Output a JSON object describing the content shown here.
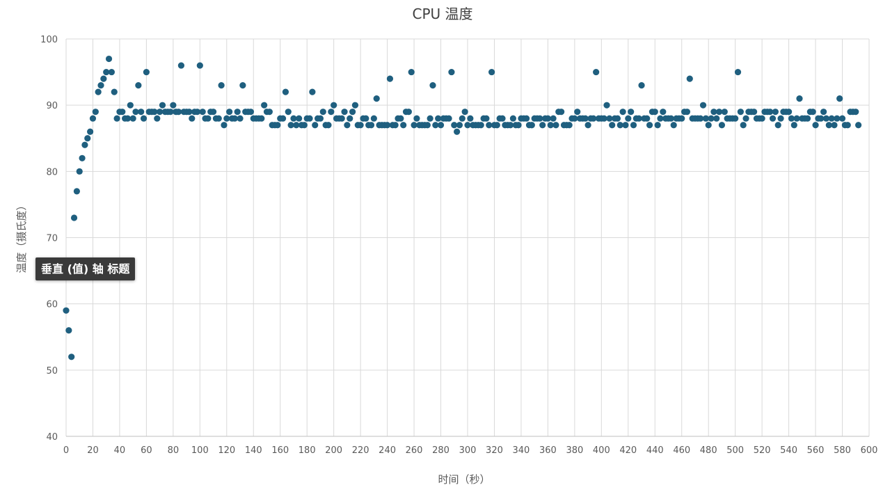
{
  "chart_data": {
    "type": "scatter",
    "title": "CPU 温度",
    "xlabel": "时间（秒）",
    "ylabel": "温度（摄氏度）",
    "xlim": [
      0,
      600
    ],
    "ylim": [
      40,
      100
    ],
    "xticks": [
      0,
      20,
      40,
      60,
      80,
      100,
      120,
      140,
      160,
      180,
      200,
      220,
      240,
      260,
      280,
      300,
      320,
      340,
      360,
      380,
      400,
      420,
      440,
      460,
      480,
      500,
      520,
      540,
      560,
      580,
      600
    ],
    "yticks": [
      40,
      50,
      60,
      70,
      80,
      90,
      100
    ],
    "grid": true,
    "marker_color": "#1F5F7F",
    "points": [
      [
        0,
        59
      ],
      [
        2,
        56
      ],
      [
        4,
        52
      ],
      [
        6,
        73
      ],
      [
        8,
        77
      ],
      [
        10,
        80
      ],
      [
        12,
        82
      ],
      [
        14,
        84
      ],
      [
        16,
        85
      ],
      [
        18,
        86
      ],
      [
        20,
        88
      ],
      [
        22,
        89
      ],
      [
        24,
        92
      ],
      [
        26,
        93
      ],
      [
        28,
        94
      ],
      [
        30,
        95
      ],
      [
        32,
        97
      ],
      [
        34,
        95
      ],
      [
        36,
        92
      ],
      [
        38,
        88
      ],
      [
        40,
        89
      ],
      [
        42,
        89
      ],
      [
        44,
        88
      ],
      [
        46,
        88
      ],
      [
        48,
        90
      ],
      [
        50,
        88
      ],
      [
        52,
        89
      ],
      [
        54,
        93
      ],
      [
        56,
        89
      ],
      [
        58,
        88
      ],
      [
        60,
        95
      ],
      [
        62,
        89
      ],
      [
        64,
        89
      ],
      [
        66,
        89
      ],
      [
        68,
        88
      ],
      [
        70,
        89
      ],
      [
        72,
        90
      ],
      [
        74,
        89
      ],
      [
        76,
        89
      ],
      [
        78,
        89
      ],
      [
        80,
        90
      ],
      [
        82,
        89
      ],
      [
        84,
        89
      ],
      [
        86,
        96
      ],
      [
        88,
        89
      ],
      [
        90,
        89
      ],
      [
        92,
        89
      ],
      [
        94,
        88
      ],
      [
        96,
        89
      ],
      [
        98,
        89
      ],
      [
        100,
        96
      ],
      [
        102,
        89
      ],
      [
        104,
        88
      ],
      [
        106,
        88
      ],
      [
        108,
        89
      ],
      [
        110,
        89
      ],
      [
        112,
        88
      ],
      [
        114,
        88
      ],
      [
        116,
        93
      ],
      [
        118,
        87
      ],
      [
        120,
        88
      ],
      [
        122,
        89
      ],
      [
        124,
        88
      ],
      [
        126,
        88
      ],
      [
        128,
        89
      ],
      [
        130,
        88
      ],
      [
        132,
        93
      ],
      [
        134,
        89
      ],
      [
        136,
        89
      ],
      [
        138,
        89
      ],
      [
        140,
        88
      ],
      [
        142,
        88
      ],
      [
        144,
        88
      ],
      [
        146,
        88
      ],
      [
        148,
        90
      ],
      [
        150,
        89
      ],
      [
        152,
        89
      ],
      [
        154,
        87
      ],
      [
        156,
        87
      ],
      [
        158,
        87
      ],
      [
        160,
        88
      ],
      [
        162,
        88
      ],
      [
        164,
        92
      ],
      [
        166,
        89
      ],
      [
        168,
        87
      ],
      [
        170,
        88
      ],
      [
        172,
        87
      ],
      [
        174,
        88
      ],
      [
        176,
        87
      ],
      [
        178,
        87
      ],
      [
        180,
        88
      ],
      [
        182,
        88
      ],
      [
        184,
        92
      ],
      [
        186,
        87
      ],
      [
        188,
        88
      ],
      [
        190,
        88
      ],
      [
        192,
        89
      ],
      [
        194,
        87
      ],
      [
        196,
        87
      ],
      [
        198,
        89
      ],
      [
        200,
        90
      ],
      [
        202,
        88
      ],
      [
        204,
        88
      ],
      [
        206,
        88
      ],
      [
        208,
        89
      ],
      [
        210,
        87
      ],
      [
        212,
        88
      ],
      [
        214,
        89
      ],
      [
        216,
        90
      ],
      [
        218,
        87
      ],
      [
        220,
        87
      ],
      [
        222,
        88
      ],
      [
        224,
        88
      ],
      [
        226,
        87
      ],
      [
        228,
        87
      ],
      [
        230,
        88
      ],
      [
        232,
        91
      ],
      [
        234,
        87
      ],
      [
        236,
        87
      ],
      [
        238,
        87
      ],
      [
        240,
        87
      ],
      [
        242,
        94
      ],
      [
        244,
        87
      ],
      [
        246,
        87
      ],
      [
        248,
        88
      ],
      [
        250,
        88
      ],
      [
        252,
        87
      ],
      [
        254,
        89
      ],
      [
        256,
        89
      ],
      [
        258,
        95
      ],
      [
        260,
        87
      ],
      [
        262,
        88
      ],
      [
        264,
        87
      ],
      [
        266,
        87
      ],
      [
        268,
        87
      ],
      [
        270,
        87
      ],
      [
        272,
        88
      ],
      [
        274,
        93
      ],
      [
        276,
        87
      ],
      [
        278,
        88
      ],
      [
        280,
        87
      ],
      [
        282,
        88
      ],
      [
        284,
        88
      ],
      [
        286,
        88
      ],
      [
        288,
        95
      ],
      [
        290,
        87
      ],
      [
        292,
        86
      ],
      [
        294,
        87
      ],
      [
        296,
        88
      ],
      [
        298,
        89
      ],
      [
        300,
        87
      ],
      [
        302,
        88
      ],
      [
        304,
        87
      ],
      [
        306,
        87
      ],
      [
        308,
        87
      ],
      [
        310,
        87
      ],
      [
        312,
        88
      ],
      [
        314,
        88
      ],
      [
        316,
        87
      ],
      [
        318,
        95
      ],
      [
        320,
        87
      ],
      [
        322,
        87
      ],
      [
        324,
        88
      ],
      [
        326,
        88
      ],
      [
        328,
        87
      ],
      [
        330,
        87
      ],
      [
        332,
        87
      ],
      [
        334,
        88
      ],
      [
        336,
        87
      ],
      [
        338,
        87
      ],
      [
        340,
        88
      ],
      [
        342,
        88
      ],
      [
        344,
        88
      ],
      [
        346,
        87
      ],
      [
        348,
        87
      ],
      [
        350,
        88
      ],
      [
        352,
        88
      ],
      [
        354,
        88
      ],
      [
        356,
        87
      ],
      [
        358,
        88
      ],
      [
        360,
        88
      ],
      [
        362,
        87
      ],
      [
        364,
        88
      ],
      [
        366,
        87
      ],
      [
        368,
        89
      ],
      [
        370,
        89
      ],
      [
        372,
        87
      ],
      [
        374,
        87
      ],
      [
        376,
        87
      ],
      [
        378,
        88
      ],
      [
        380,
        88
      ],
      [
        382,
        89
      ],
      [
        384,
        88
      ],
      [
        386,
        88
      ],
      [
        388,
        88
      ],
      [
        390,
        87
      ],
      [
        392,
        88
      ],
      [
        394,
        88
      ],
      [
        396,
        95
      ],
      [
        398,
        88
      ],
      [
        400,
        88
      ],
      [
        402,
        88
      ],
      [
        404,
        90
      ],
      [
        406,
        88
      ],
      [
        408,
        87
      ],
      [
        410,
        88
      ],
      [
        412,
        88
      ],
      [
        414,
        87
      ],
      [
        416,
        89
      ],
      [
        418,
        87
      ],
      [
        420,
        88
      ],
      [
        422,
        89
      ],
      [
        424,
        87
      ],
      [
        426,
        88
      ],
      [
        428,
        88
      ],
      [
        430,
        93
      ],
      [
        432,
        88
      ],
      [
        434,
        88
      ],
      [
        436,
        87
      ],
      [
        438,
        89
      ],
      [
        440,
        89
      ],
      [
        442,
        87
      ],
      [
        444,
        88
      ],
      [
        446,
        89
      ],
      [
        448,
        88
      ],
      [
        450,
        88
      ],
      [
        452,
        88
      ],
      [
        454,
        87
      ],
      [
        456,
        88
      ],
      [
        458,
        88
      ],
      [
        460,
        88
      ],
      [
        462,
        89
      ],
      [
        464,
        89
      ],
      [
        466,
        94
      ],
      [
        468,
        88
      ],
      [
        470,
        88
      ],
      [
        472,
        88
      ],
      [
        474,
        88
      ],
      [
        476,
        90
      ],
      [
        478,
        88
      ],
      [
        480,
        87
      ],
      [
        482,
        88
      ],
      [
        484,
        89
      ],
      [
        486,
        88
      ],
      [
        488,
        89
      ],
      [
        490,
        87
      ],
      [
        492,
        89
      ],
      [
        494,
        88
      ],
      [
        496,
        88
      ],
      [
        498,
        88
      ],
      [
        500,
        88
      ],
      [
        502,
        95
      ],
      [
        504,
        89
      ],
      [
        506,
        87
      ],
      [
        508,
        88
      ],
      [
        510,
        89
      ],
      [
        512,
        89
      ],
      [
        514,
        89
      ],
      [
        516,
        88
      ],
      [
        518,
        88
      ],
      [
        520,
        88
      ],
      [
        522,
        89
      ],
      [
        524,
        89
      ],
      [
        526,
        89
      ],
      [
        528,
        88
      ],
      [
        530,
        89
      ],
      [
        532,
        87
      ],
      [
        534,
        88
      ],
      [
        536,
        89
      ],
      [
        538,
        89
      ],
      [
        540,
        89
      ],
      [
        542,
        88
      ],
      [
        544,
        87
      ],
      [
        546,
        88
      ],
      [
        548,
        91
      ],
      [
        550,
        88
      ],
      [
        552,
        88
      ],
      [
        554,
        88
      ],
      [
        556,
        89
      ],
      [
        558,
        89
      ],
      [
        560,
        87
      ],
      [
        562,
        88
      ],
      [
        564,
        88
      ],
      [
        566,
        89
      ],
      [
        568,
        88
      ],
      [
        570,
        87
      ],
      [
        572,
        88
      ],
      [
        574,
        87
      ],
      [
        576,
        88
      ],
      [
        578,
        91
      ],
      [
        580,
        88
      ],
      [
        582,
        87
      ],
      [
        584,
        87
      ],
      [
        586,
        89
      ],
      [
        588,
        89
      ],
      [
        590,
        89
      ],
      [
        592,
        87
      ]
    ]
  },
  "tooltip": {
    "text": "垂直 (值) 轴 标题"
  }
}
